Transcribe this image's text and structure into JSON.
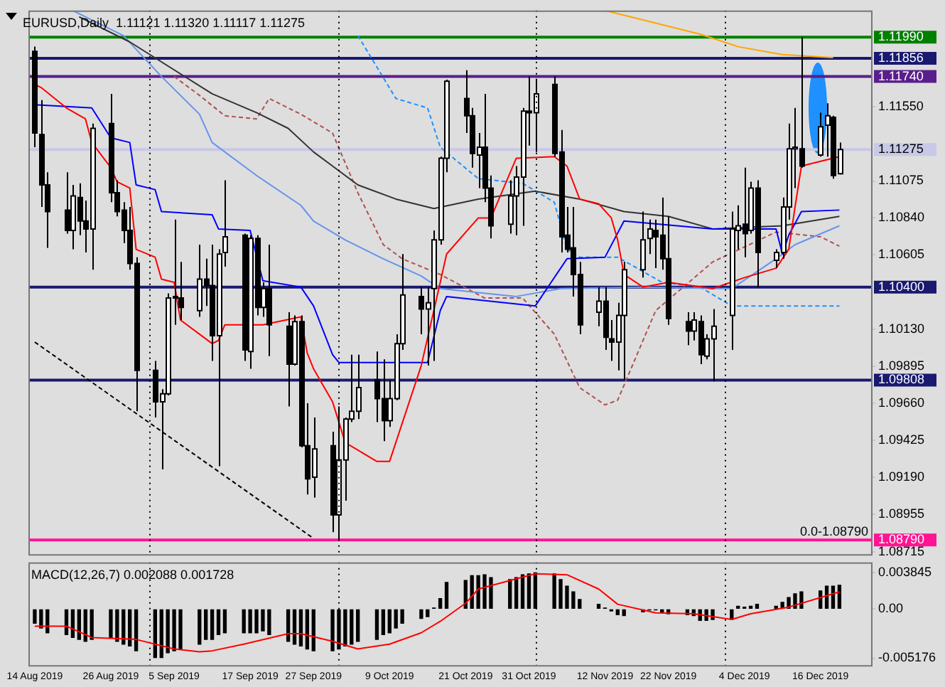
{
  "chart_data": [
    {
      "type": "candlestick",
      "title": "EURUSD,Daily  1.11121 1.11320 1.11117 1.11275",
      "x": [
        "2019-08-14",
        "2019-08-15",
        "2019-08-16",
        "2019-08-19",
        "2019-08-20",
        "2019-08-21",
        "2019-08-22",
        "2019-08-23",
        "2019-08-26",
        "2019-08-27",
        "2019-08-28",
        "2019-08-29",
        "2019-08-30",
        "2019-09-02",
        "2019-09-03",
        "2019-09-04",
        "2019-09-05",
        "2019-09-06",
        "2019-09-09",
        "2019-09-10",
        "2019-09-11",
        "2019-09-12",
        "2019-09-13",
        "2019-09-16",
        "2019-09-17",
        "2019-09-18",
        "2019-09-19",
        "2019-09-20",
        "2019-09-23",
        "2019-09-24",
        "2019-09-25",
        "2019-09-26",
        "2019-09-27",
        "2019-09-30",
        "2019-10-01",
        "2019-10-02",
        "2019-10-03",
        "2019-10-04",
        "2019-10-07",
        "2019-10-08",
        "2019-10-09",
        "2019-10-10",
        "2019-10-11",
        "2019-10-14",
        "2019-10-15",
        "2019-10-16",
        "2019-10-17",
        "2019-10-18",
        "2019-10-21",
        "2019-10-22",
        "2019-10-23",
        "2019-10-24",
        "2019-10-25",
        "2019-10-28",
        "2019-10-29",
        "2019-10-30",
        "2019-10-31",
        "2019-11-01",
        "2019-11-04",
        "2019-11-05",
        "2019-11-06",
        "2019-11-07",
        "2019-11-08",
        "2019-11-11",
        "2019-11-12",
        "2019-11-13",
        "2019-11-14",
        "2019-11-15",
        "2019-11-18",
        "2019-11-19",
        "2019-11-20",
        "2019-11-21",
        "2019-11-22",
        "2019-11-25",
        "2019-11-26",
        "2019-11-27",
        "2019-11-28",
        "2019-11-29",
        "2019-12-02",
        "2019-12-03",
        "2019-12-04",
        "2019-12-05",
        "2019-12-06",
        "2019-12-09",
        "2019-12-10",
        "2019-12-11",
        "2019-12-12",
        "2019-12-13",
        "2019-12-16",
        "2019-12-17",
        "2019-12-18",
        "2019-12-19"
      ],
      "ohlc": [
        [
          1.119,
          1.1193,
          1.1129,
          1.1138
        ],
        [
          1.1137,
          1.1159,
          1.1091,
          1.1105
        ],
        [
          1.1105,
          1.1113,
          1.1065,
          1.1088
        ],
        [
          1.1089,
          1.1113,
          1.1074,
          1.1076
        ],
        [
          1.1076,
          1.1105,
          1.1064,
          1.1098
        ],
        [
          1.1097,
          1.1106,
          1.1073,
          1.1082
        ],
        [
          1.1082,
          1.1095,
          1.1062,
          1.1077
        ],
        [
          1.1077,
          1.1144,
          1.1051,
          1.1141
        ],
        [
          1.1144,
          1.1163,
          1.1094,
          1.11
        ],
        [
          1.11,
          1.1108,
          1.1085,
          1.1088
        ],
        [
          1.1089,
          1.1094,
          1.1068,
          1.1076
        ],
        [
          1.1076,
          1.1091,
          1.1051,
          1.1055
        ],
        [
          1.1055,
          1.1059,
          1.0961,
          1.0987
        ],
        [
          1.0987,
          1.0993,
          1.0957,
          1.0967
        ],
        [
          1.0967,
          1.0975,
          1.0924,
          1.0972
        ],
        [
          1.0972,
          1.1036,
          1.0971,
          1.1033
        ],
        [
          1.1034,
          1.1083,
          1.1016,
          1.1033
        ],
        [
          1.1033,
          1.1056,
          1.1019,
          1.1027
        ],
        [
          1.1025,
          1.1067,
          1.1021,
          1.1045
        ],
        [
          1.1045,
          1.1058,
          1.1028,
          1.1041
        ],
        [
          1.1041,
          1.1067,
          1.0993,
          1.1009
        ],
        [
          1.1009,
          1.1064,
          1.0926,
          1.1061
        ],
        [
          1.1062,
          1.1108,
          1.1053,
          1.1072
        ],
        [
          1.1073,
          1.1074,
          1.0993,
          1.1
        ],
        [
          1.0999,
          1.1073,
          1.0988,
          1.1071
        ],
        [
          1.1071,
          1.1073,
          1.1022,
          1.1027
        ],
        [
          1.1027,
          1.1043,
          1.1021,
          1.1039
        ],
        [
          1.1039,
          1.1067,
          1.0996,
          1.1016
        ],
        [
          1.1015,
          1.1024,
          1.0964,
          1.0991
        ],
        [
          1.0991,
          1.1022,
          1.099,
          1.1018
        ],
        [
          1.1018,
          1.1022,
          1.0938,
          1.0939
        ],
        [
          1.0939,
          1.0966,
          1.0908,
          1.0918
        ],
        [
          1.0919,
          1.0957,
          1.0906,
          1.0937
        ],
        [
          1.0939,
          1.0948,
          1.0884,
          1.0895
        ],
        [
          1.0895,
          1.0964,
          1.0879,
          1.093
        ],
        [
          1.093,
          1.0957,
          1.0904,
          1.0956
        ],
        [
          1.0956,
          1.0997,
          1.0954,
          1.0961
        ],
        [
          1.0961,
          1.0997,
          1.0956,
          1.0976
        ],
        [
          1.0981,
          1.0999,
          1.0954,
          1.0969
        ],
        [
          1.0969,
          1.0994,
          1.0942,
          1.0955
        ],
        [
          1.0955,
          1.0981,
          1.0951,
          1.0969
        ],
        [
          1.0969,
          1.101,
          1.0968,
          1.1004
        ],
        [
          1.1004,
          1.1061,
          1.1,
          1.1035
        ],
        [
          1.1034,
          1.104,
          1.101,
          1.1026
        ],
        [
          1.1026,
          1.104,
          1.099,
          1.103
        ],
        [
          1.1039,
          1.1076,
          1.0993,
          1.107
        ],
        [
          1.107,
          1.1123,
          1.1067,
          1.1122
        ],
        [
          1.1122,
          1.1172,
          1.1113,
          1.1171
        ],
        [
          1.116,
          1.1178,
          1.1138,
          1.1149
        ],
        [
          1.1149,
          1.1154,
          1.1116,
          1.1125
        ],
        [
          1.1124,
          1.1138,
          1.1103,
          1.1129
        ],
        [
          1.1129,
          1.1163,
          1.1094,
          1.1103
        ],
        [
          1.1103,
          1.1111,
          1.1071,
          1.1079
        ],
        [
          1.108,
          1.1108,
          1.1074,
          1.1098
        ],
        [
          1.1098,
          1.1117,
          1.1073,
          1.111
        ],
        [
          1.111,
          1.1154,
          1.1079,
          1.1152
        ],
        [
          1.1152,
          1.1174,
          1.113,
          1.1151
        ],
        [
          1.1151,
          1.1172,
          1.1126,
          1.1163
        ],
        [
          1.1169,
          1.1174,
          1.1123,
          1.1125
        ],
        [
          1.1126,
          1.114,
          1.1062,
          1.1072
        ],
        [
          1.1073,
          1.1091,
          1.1062,
          1.1064
        ],
        [
          1.1065,
          1.1091,
          1.1034,
          1.1048
        ],
        [
          1.1048,
          1.1056,
          1.101,
          1.1016
        ],
        [
          1.1024,
          1.104,
          1.1015,
          1.1031
        ],
        [
          1.1031,
          1.104,
          1.1,
          1.1008
        ],
        [
          1.1007,
          1.1019,
          1.0993,
          1.1005
        ],
        [
          1.1005,
          1.103,
          1.0987,
          1.1022
        ],
        [
          1.1022,
          1.1056,
          1.0981,
          1.1051
        ],
        [
          1.1051,
          1.1088,
          1.1046,
          1.107
        ],
        [
          1.1071,
          1.1083,
          1.1061,
          1.1077
        ],
        [
          1.1076,
          1.1083,
          1.1052,
          1.1072
        ],
        [
          1.1073,
          1.1097,
          1.1051,
          1.1058
        ],
        [
          1.1058,
          1.1085,
          1.1016,
          1.102
        ],
        [
          1.1018,
          1.1024,
          1.1003,
          1.1012
        ],
        [
          1.1012,
          1.1024,
          1.1006,
          1.1019
        ],
        [
          1.1018,
          1.1022,
          1.0991,
          1.0997
        ],
        [
          1.0996,
          1.101,
          1.0994,
          1.1007
        ],
        [
          1.1007,
          1.1026,
          1.098,
          1.1015
        ],
        [
          1.1022,
          1.1088,
          1.1,
          1.1077
        ],
        [
          1.1076,
          1.1092,
          1.1064,
          1.1079
        ],
        [
          1.108,
          1.1116,
          1.1059,
          1.1074
        ],
        [
          1.1076,
          1.1107,
          1.1074,
          1.1103
        ],
        [
          1.1103,
          1.1108,
          1.104,
          1.1062
        ],
        [
          1.1057,
          1.1064,
          1.1052,
          1.1062
        ],
        [
          1.1062,
          1.1097,
          1.1058,
          1.1091
        ],
        [
          1.1091,
          1.1144,
          1.1083,
          1.1128
        ],
        [
          1.1128,
          1.1154,
          1.1103,
          1.1129
        ],
        [
          1.1128,
          1.1199,
          1.1116,
          1.1117
        ],
        [
          1.1124,
          1.1151,
          1.1123,
          1.1142
        ],
        [
          1.1143,
          1.1157,
          1.1123,
          1.1149
        ],
        [
          1.1148,
          1.1149,
          1.1109,
          1.1111
        ],
        [
          1.11121,
          1.1132,
          1.11117,
          1.11275
        ]
      ],
      "xlim": [
        "2019-08-13",
        "2019-12-24"
      ],
      "ylim": [
        1.087,
        1.1216
      ],
      "yticks": [
        {
          "value": 1.1155,
          "label": "1.11550"
        },
        {
          "value": 1.11075,
          "label": "1.11075"
        },
        {
          "value": 1.1084,
          "label": "1.10840"
        },
        {
          "value": 1.10605,
          "label": "1.10605"
        },
        {
          "value": 1.1013,
          "label": "1.10130"
        },
        {
          "value": 1.09895,
          "label": "1.09895"
        },
        {
          "value": 1.0966,
          "label": "1.09660"
        },
        {
          "value": 1.09425,
          "label": "1.09425"
        },
        {
          "value": 1.0919,
          "label": "1.09190"
        },
        {
          "value": 1.08955,
          "label": "1.08955"
        },
        {
          "value": 1.08715,
          "label": "1.08715"
        }
      ],
      "tick_labels": "y",
      "legend": false,
      "grid": false,
      "marker": "none",
      "series": [
        {
          "type": "line",
          "color": "#ff0000",
          "x": [
            "2019-08-14",
            "2019-08-15",
            "2019-08-19",
            "2019-08-22",
            "2019-08-23",
            "2019-08-26",
            "2019-08-27",
            "2019-08-29",
            "2019-08-30",
            "2019-09-02",
            "2019-09-03",
            "2019-09-05",
            "2019-09-06",
            "2019-09-09",
            "2019-09-11",
            "2019-09-12",
            "2019-09-13",
            "2019-09-19",
            "2019-09-25",
            "2019-09-26",
            "2019-09-27",
            "2019-09-30",
            "2019-10-02",
            "2019-10-07",
            "2019-10-09",
            "2019-10-14",
            "2019-10-17",
            "2019-10-18",
            "2019-10-23",
            "2019-10-25",
            "2019-10-29",
            "2019-11-04",
            "2019-11-06",
            "2019-11-08",
            "2019-11-11",
            "2019-11-13",
            "2019-11-14",
            "2019-11-15",
            "2019-11-18",
            "2019-11-22",
            "2019-11-29",
            "2019-12-04",
            "2019-12-09",
            "2019-12-11",
            "2019-12-12",
            "2019-12-13",
            "2019-12-19"
          ],
          "values": [
            1.1169,
            1.1167,
            1.1154,
            1.1147,
            1.1132,
            1.1116,
            1.1107,
            1.1103,
            1.1064,
            1.1059,
            1.1045,
            1.1043,
            1.1019,
            1.101,
            1.1004,
            1.1006,
            1.1016,
            1.1016,
            1.1021,
            1.0998,
            1.0988,
            1.0967,
            1.0941,
            1.0929,
            1.0929,
            1.099,
            1.1043,
            1.1061,
            1.1084,
            1.1084,
            1.1122,
            1.1123,
            1.1117,
            1.1096,
            1.1093,
            1.1084,
            1.107,
            1.1048,
            1.104,
            1.1043,
            1.1039,
            1.1046,
            1.1052,
            1.1064,
            1.1091,
            1.1117,
            1.1123
          ]
        },
        {
          "type": "line",
          "color": "#0000ff",
          "x": [
            "2019-08-14",
            "2019-08-23",
            "2019-08-26",
            "2019-08-29",
            "2019-08-30",
            "2019-09-02",
            "2019-09-03",
            "2019-09-11",
            "2019-09-12",
            "2019-09-17",
            "2019-09-19",
            "2019-09-25",
            "2019-09-26",
            "2019-09-27",
            "2019-09-30",
            "2019-10-01",
            "2019-10-15",
            "2019-10-17",
            "2019-10-18",
            "2019-11-01",
            "2019-11-06",
            "2019-11-12",
            "2019-11-15",
            "2019-11-29",
            "2019-12-09",
            "2019-12-10",
            "2019-12-11",
            "2019-12-13",
            "2019-12-19"
          ],
          "values": [
            1.1156,
            1.1154,
            1.1135,
            1.1132,
            1.1105,
            1.1102,
            1.1088,
            1.1086,
            1.1077,
            1.1076,
            1.1044,
            1.104,
            1.1034,
            1.1028,
            1.0997,
            1.0992,
            1.0992,
            1.1025,
            1.1034,
            1.1028,
            1.1058,
            1.1059,
            1.1082,
            1.1077,
            1.1077,
            1.1061,
            1.1073,
            1.1088,
            1.1089
          ]
        },
        {
          "type": "line",
          "color": "#333333",
          "x": [
            "2019-08-21",
            "2019-08-29",
            "2019-09-11",
            "2019-09-18",
            "2019-09-23",
            "2019-09-27",
            "2019-09-30",
            "2019-10-04",
            "2019-10-10",
            "2019-10-16",
            "2019-10-23",
            "2019-11-01",
            "2019-11-08",
            "2019-11-15",
            "2019-11-22",
            "2019-11-29",
            "2019-12-10",
            "2019-12-19"
          ],
          "values": [
            1.1212,
            1.1196,
            1.1163,
            1.1151,
            1.1141,
            1.1126,
            1.1117,
            1.1105,
            1.1096,
            1.109,
            1.1096,
            1.1101,
            1.1096,
            1.1088,
            1.1085,
            1.1077,
            1.1079,
            1.1085
          ]
        },
        {
          "type": "line",
          "color": "#6495ed",
          "x": [
            "2019-08-20",
            "2019-08-28",
            "2019-09-03",
            "2019-09-09",
            "2019-09-11",
            "2019-09-18",
            "2019-09-25",
            "2019-09-27",
            "2019-10-02",
            "2019-10-08",
            "2019-10-14",
            "2019-10-17",
            "2019-10-29",
            "2019-11-05",
            "2019-11-18",
            "2019-12-02",
            "2019-12-09",
            "2019-12-12",
            "2019-12-19"
          ],
          "values": [
            1.1216,
            1.12,
            1.1174,
            1.115,
            1.1132,
            1.1111,
            1.1092,
            1.1082,
            1.107,
            1.1058,
            1.1047,
            1.1039,
            1.1034,
            1.1039,
            1.104,
            1.1039,
            1.1058,
            1.1067,
            1.1079
          ]
        },
        {
          "type": "line",
          "color": "#ffa500",
          "x": [
            "2019-11-12",
            "2019-11-27",
            "2019-12-03",
            "2019-12-10",
            "2019-12-18"
          ],
          "values": [
            1.1216,
            1.1201,
            1.1193,
            1.1188,
            1.1186
          ]
        },
        {
          "type": "line",
          "color": "#1e90ff",
          "line_style": "dashed",
          "x": [
            "2019-10-04",
            "2019-10-10",
            "2019-10-15",
            "2019-10-17",
            "2019-10-23",
            "2019-10-30",
            "2019-11-04",
            "2019-11-06",
            "2019-11-08",
            "2019-11-14",
            "2019-11-21",
            "2019-11-27",
            "2019-12-02",
            "2019-12-19"
          ],
          "values": [
            1.12,
            1.116,
            1.1154,
            1.1129,
            1.1109,
            1.1106,
            1.1094,
            1.1064,
            1.1059,
            1.1059,
            1.1043,
            1.104,
            1.1028,
            1.1028
          ]
        },
        {
          "type": "line",
          "color": "#b05050",
          "line_style": "dashed",
          "x": [
            "2019-09-05",
            "2019-09-09",
            "2019-09-13",
            "2019-09-18",
            "2019-09-20",
            "2019-09-25",
            "2019-09-30",
            "2019-10-04",
            "2019-10-08",
            "2019-10-11",
            "2019-10-17",
            "2019-10-24",
            "2019-10-30",
            "2019-11-04",
            "2019-11-08",
            "2019-11-12",
            "2019-11-14",
            "2019-11-20",
            "2019-11-29",
            "2019-12-09",
            "2019-12-16",
            "2019-12-19"
          ],
          "values": [
            1.1174,
            1.1162,
            1.1149,
            1.1147,
            1.116,
            1.115,
            1.1138,
            1.11,
            1.1067,
            1.1058,
            1.1048,
            1.1033,
            1.1033,
            1.101,
            1.0976,
            1.0965,
            1.0968,
            1.1025,
            1.1056,
            1.1075,
            1.1072,
            1.1066
          ]
        },
        {
          "type": "line",
          "color": "#000000",
          "line_style": "dashed",
          "x": [
            "2019-08-14",
            "2019-09-27"
          ],
          "values": [
            1.1005,
            1.088
          ]
        }
      ],
      "ref_lines": [
        {
          "axis": "y",
          "value": 1.1199,
          "label": "1.11990",
          "color": "#008000"
        },
        {
          "axis": "y",
          "value": 1.11856,
          "label": "1.11856",
          "color": "#191970"
        },
        {
          "axis": "y",
          "value": 1.1174,
          "label": "1.11740",
          "color": "#5a1e8c"
        },
        {
          "axis": "y",
          "value": 1.11275,
          "label": "1.11275",
          "color": "#c8c8e8"
        },
        {
          "axis": "y",
          "value": 1.104,
          "label": "1.10400",
          "color": "#191970"
        },
        {
          "axis": "y",
          "value": 1.09808,
          "label": "1.09808",
          "color": "#191970"
        },
        {
          "axis": "y",
          "value": 1.0879,
          "label": "1.08790",
          "color": "#ff1493"
        },
        {
          "axis": "x",
          "value": "2019-09-01",
          "color": "#000000",
          "line_style": "dotted"
        },
        {
          "axis": "x",
          "value": "2019-10-01",
          "color": "#000000",
          "line_style": "dotted"
        },
        {
          "axis": "x",
          "value": "2019-11-01",
          "color": "#000000",
          "line_style": "dotted"
        },
        {
          "axis": "x",
          "value": "2019-12-01",
          "color": "#000000",
          "line_style": "dotted"
        }
      ],
      "annotations": [
        {
          "text": "0.0-1.08790",
          "y": 1.0879
        }
      ]
    },
    {
      "type": "bar",
      "title": "MACD(12,26,7) 0.002088 0.001728",
      "x": [
        "2019-08-14",
        "2019-08-15",
        "2019-08-16",
        "2019-08-19",
        "2019-08-20",
        "2019-08-21",
        "2019-08-22",
        "2019-08-23",
        "2019-08-26",
        "2019-08-27",
        "2019-08-28",
        "2019-08-29",
        "2019-08-30",
        "2019-09-02",
        "2019-09-03",
        "2019-09-04",
        "2019-09-05",
        "2019-09-06",
        "2019-09-09",
        "2019-09-10",
        "2019-09-11",
        "2019-09-12",
        "2019-09-13",
        "2019-09-16",
        "2019-09-17",
        "2019-09-18",
        "2019-09-19",
        "2019-09-20",
        "2019-09-23",
        "2019-09-24",
        "2019-09-25",
        "2019-09-26",
        "2019-09-27",
        "2019-09-30",
        "2019-10-01",
        "2019-10-02",
        "2019-10-03",
        "2019-10-04",
        "2019-10-07",
        "2019-10-08",
        "2019-10-09",
        "2019-10-10",
        "2019-10-11",
        "2019-10-14",
        "2019-10-15",
        "2019-10-16",
        "2019-10-17",
        "2019-10-18",
        "2019-10-21",
        "2019-10-22",
        "2019-10-23",
        "2019-10-24",
        "2019-10-25",
        "2019-10-28",
        "2019-10-29",
        "2019-10-30",
        "2019-10-31",
        "2019-11-01",
        "2019-11-04",
        "2019-11-05",
        "2019-11-06",
        "2019-11-07",
        "2019-11-08",
        "2019-11-11",
        "2019-11-12",
        "2019-11-13",
        "2019-11-14",
        "2019-11-15",
        "2019-11-18",
        "2019-11-19",
        "2019-11-20",
        "2019-11-21",
        "2019-11-22",
        "2019-11-25",
        "2019-11-26",
        "2019-11-27",
        "2019-11-28",
        "2019-11-29",
        "2019-12-02",
        "2019-12-03",
        "2019-12-04",
        "2019-12-05",
        "2019-12-06",
        "2019-12-09",
        "2019-12-10",
        "2019-12-11",
        "2019-12-12",
        "2019-12-13",
        "2019-12-16",
        "2019-12-17",
        "2019-12-18",
        "2019-12-19"
      ],
      "xlim": [
        "2019-08-13",
        "2019-12-24"
      ],
      "xticks": [
        {
          "value": "2019-08-14",
          "label": "14 Aug 2019"
        },
        {
          "value": "2019-08-26",
          "label": "26 Aug 2019"
        },
        {
          "value": "2019-09-05",
          "label": "5 Sep 2019"
        },
        {
          "value": "2019-09-17",
          "label": "17 Sep 2019"
        },
        {
          "value": "2019-09-27",
          "label": "27 Sep 2019"
        },
        {
          "value": "2019-10-09",
          "label": "9 Oct 2019"
        },
        {
          "value": "2019-10-21",
          "label": "21 Oct 2019"
        },
        {
          "value": "2019-10-31",
          "label": "31 Oct 2019"
        },
        {
          "value": "2019-11-12",
          "label": "12 Nov 2019"
        },
        {
          "value": "2019-11-22",
          "label": "22 Nov 2019"
        },
        {
          "value": "2019-12-04",
          "label": "4 Dec 2019"
        },
        {
          "value": "2019-12-16",
          "label": "16 Dec 2019"
        }
      ],
      "ylim": [
        -0.0059,
        0.0049
      ],
      "yticks": [
        0.003845,
        {
          "value": 0,
          "label": "0.00"
        },
        -0.005176
      ],
      "legend": false,
      "grid": false,
      "marker": "none",
      "series": [
        {
          "type": "bar",
          "color": "#000000",
          "values": [
            -0.0015,
            -0.002,
            -0.0025,
            -0.0027,
            -0.003,
            -0.0032,
            -0.0034,
            -0.0032,
            -0.003,
            -0.0034,
            -0.0037,
            -0.0039,
            -0.0044,
            -0.0051,
            -0.0051,
            -0.0046,
            -0.0044,
            -0.0042,
            -0.0037,
            -0.0032,
            -0.0032,
            -0.0027,
            -0.0025,
            -0.0025,
            -0.0025,
            -0.0025,
            -0.0023,
            -0.0027,
            -0.0034,
            -0.0037,
            -0.0039,
            -0.0042,
            -0.0044,
            -0.0044,
            -0.0042,
            -0.0039,
            -0.0037,
            -0.0034,
            -0.0032,
            -0.0027,
            -0.0025,
            -0.002,
            -0.0015,
            -0.001,
            -0.0008,
            0.0001,
            0.0011,
            0.0028,
            0.003,
            0.0035,
            0.0035,
            0.0036,
            0.0033,
            0.0031,
            0.0033,
            0.0036,
            0.0037,
            0.0038,
            0.0037,
            0.0031,
            0.0024,
            0.0018,
            0.001,
            0.0005,
            0.0001,
            -0.0002,
            -0.0006,
            -0.0007,
            -0.0003,
            -0.0001,
            -0.0001,
            -0.0003,
            -0.0005,
            -0.0006,
            -0.0007,
            -0.0012,
            -0.0012,
            -0.0011,
            -0.0011,
            0.0003,
            0.0002,
            0.0003,
            0.0005,
            0.0003,
            0.0007,
            0.0012,
            0.0016,
            0.0018,
            0.0019,
            0.0024,
            0.0024,
            0.0025
          ]
        },
        {
          "type": "line",
          "color": "#ff0000",
          "x": [
            "2019-08-14",
            "2019-08-19",
            "2019-08-23",
            "2019-08-30",
            "2019-09-05",
            "2019-09-09",
            "2019-09-11",
            "2019-09-16",
            "2019-09-23",
            "2019-09-25",
            "2019-09-30",
            "2019-10-04",
            "2019-10-09",
            "2019-10-14",
            "2019-10-17",
            "2019-10-21",
            "2019-10-23",
            "2019-10-28",
            "2019-11-01",
            "2019-11-06",
            "2019-11-11",
            "2019-11-14",
            "2019-11-18",
            "2019-11-20",
            "2019-11-26",
            "2019-12-02",
            "2019-12-05",
            "2019-12-11",
            "2019-12-16",
            "2019-12-19"
          ],
          "values": [
            -0.0018,
            -0.0018,
            -0.003,
            -0.0032,
            -0.0042,
            -0.0045,
            -0.0044,
            -0.0037,
            -0.0026,
            -0.0026,
            -0.0034,
            -0.0042,
            -0.0037,
            -0.0025,
            -0.0013,
            0.0006,
            0.0021,
            0.003,
            0.0037,
            0.0036,
            0.0021,
            0.0005,
            -0.0001,
            -0.0004,
            -0.0005,
            -0.0011,
            -0.0005,
            0.0002,
            0.0012,
            0.0018
          ]
        }
      ],
      "ref_lines": [
        {
          "axis": "x",
          "value": "2019-09-01",
          "color": "#000000",
          "line_style": "dotted"
        },
        {
          "axis": "x",
          "value": "2019-10-01",
          "color": "#000000",
          "line_style": "dotted"
        },
        {
          "axis": "x",
          "value": "2019-11-01",
          "color": "#000000",
          "line_style": "dotted"
        },
        {
          "axis": "x",
          "value": "2019-12-01",
          "color": "#000000",
          "line_style": "dotted"
        }
      ]
    }
  ]
}
